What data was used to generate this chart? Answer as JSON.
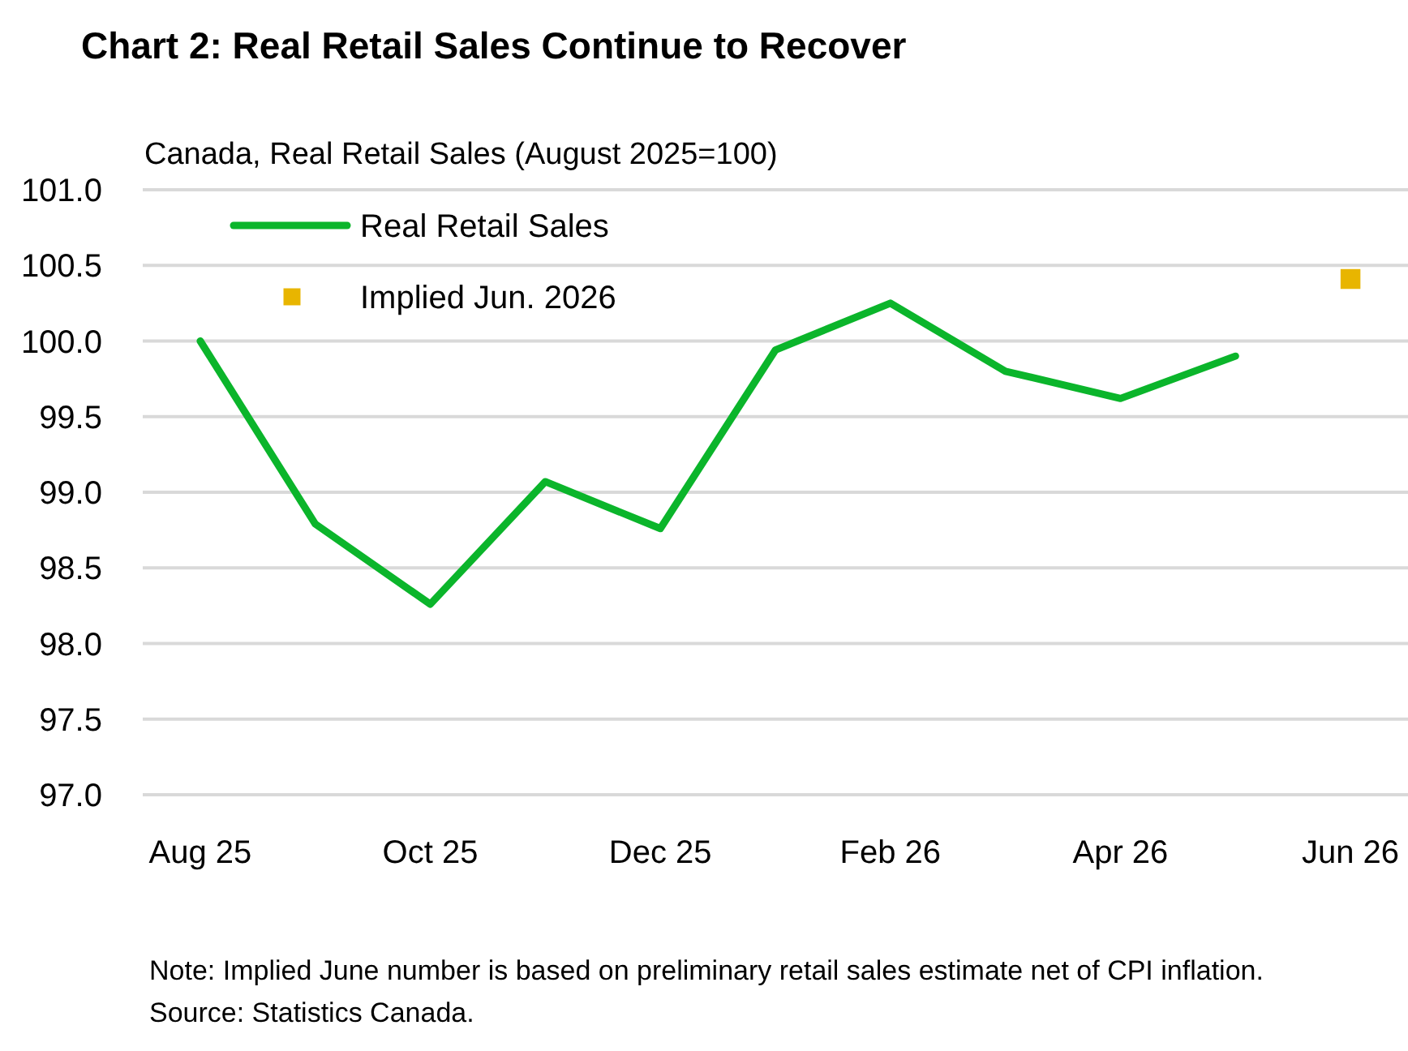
{
  "chart_data": {
    "type": "line",
    "title": "Chart 2: Real Retail Sales Continue to Recover",
    "subtitle": "Canada, Real Retail Sales (August 2025=100)",
    "categories": [
      "Aug 25",
      null,
      "Oct 25",
      null,
      "Dec 25",
      null,
      "Feb 26",
      null,
      "Apr 26",
      null,
      "Jun 26"
    ],
    "series": [
      {
        "name": "Real Retail Sales",
        "color": "#0bb52b",
        "values": [
          100.0,
          98.79,
          98.26,
          99.07,
          98.76,
          99.94,
          100.25,
          99.8,
          99.62,
          99.9,
          null
        ]
      },
      {
        "name": "Implied Jun. 2026",
        "type": "scatter",
        "marker": "square",
        "color": "#e8b500",
        "values": [
          null,
          null,
          null,
          null,
          null,
          null,
          null,
          null,
          null,
          null,
          100.41
        ]
      }
    ],
    "ylim": [
      97,
      101
    ],
    "yticks": [
      {
        "value": 97,
        "label": "97.0"
      },
      {
        "value": 97.5,
        "label": "97.5"
      },
      {
        "value": 98,
        "label": "98.0"
      },
      {
        "value": 98.5,
        "label": "98.5"
      },
      {
        "value": 99,
        "label": "99.0"
      },
      {
        "value": 99.5,
        "label": "99.5"
      },
      {
        "value": 100,
        "label": "100.0"
      },
      {
        "value": 100.5,
        "label": "100.5"
      },
      {
        "value": 101,
        "label": "101.0"
      }
    ],
    "grid": "y",
    "legend": "top left",
    "annotations": [
      "Note: Implied June number is based on preliminary retail sales estimate net of CPI inflation. Source: Statistics Canada."
    ]
  }
}
